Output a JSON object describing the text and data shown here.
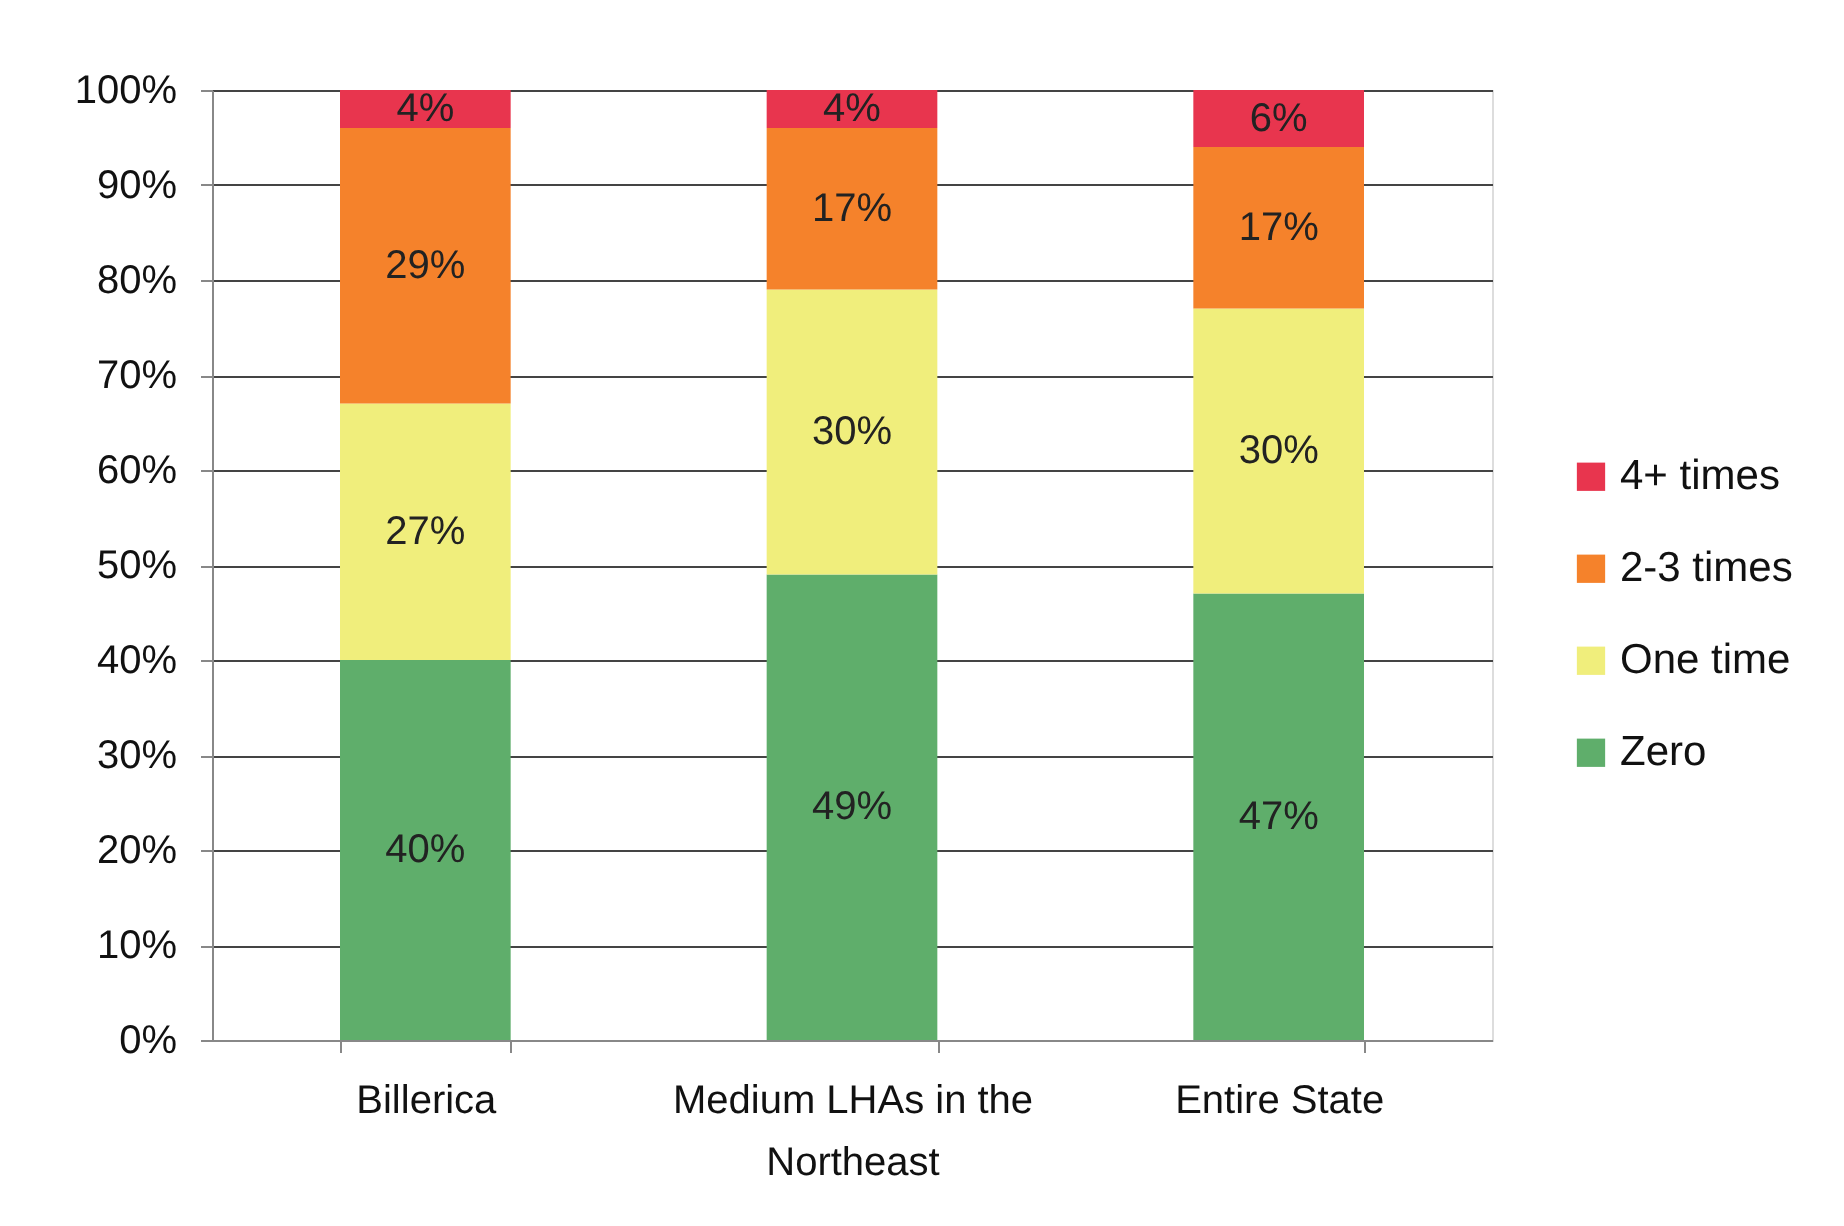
{
  "chart_data": {
    "type": "bar",
    "stacked": true,
    "categories": [
      "Billerica",
      "Medium LHAs in the Northeast",
      "Entire State"
    ],
    "series": [
      {
        "name": "Zero",
        "color": "#5fae6b",
        "values": [
          40,
          49,
          47
        ],
        "value_labels": [
          "40%",
          "49%",
          "47%"
        ]
      },
      {
        "name": "One time",
        "color": "#f0ee7c",
        "values": [
          27,
          30,
          30
        ],
        "value_labels": [
          "27%",
          "30%",
          "30%"
        ]
      },
      {
        "name": "2-3 times",
        "color": "#f5822b",
        "values": [
          29,
          17,
          17
        ],
        "value_labels": [
          "29%",
          "17%",
          "17%"
        ]
      },
      {
        "name": "4+ times",
        "color": "#e8354e",
        "values": [
          4,
          4,
          6
        ],
        "value_labels": [
          "4%",
          "4%",
          "6%"
        ]
      }
    ],
    "ylim": [
      0,
      100
    ],
    "yticks": [
      {
        "value": 0,
        "label": "0%"
      },
      {
        "value": 10,
        "label": "10%"
      },
      {
        "value": 20,
        "label": "20%"
      },
      {
        "value": 30,
        "label": "30%"
      },
      {
        "value": 40,
        "label": "40%"
      },
      {
        "value": 50,
        "label": "50%"
      },
      {
        "value": 60,
        "label": "60%"
      },
      {
        "value": 70,
        "label": "70%"
      },
      {
        "value": 80,
        "label": "80%"
      },
      {
        "value": 90,
        "label": "90%"
      },
      {
        "value": 100,
        "label": "100%"
      }
    ],
    "grid": "y",
    "legend": "right"
  }
}
